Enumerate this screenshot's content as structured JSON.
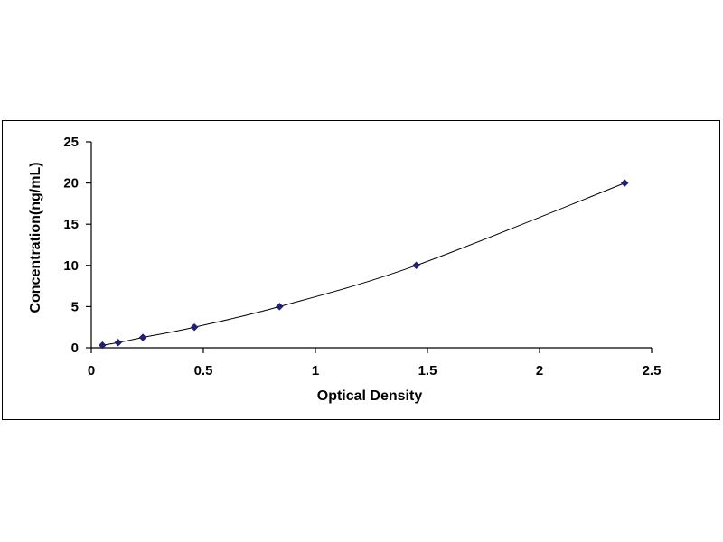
{
  "chart_data": {
    "type": "scatter",
    "title": "",
    "xlabel": "Optical Density",
    "ylabel": "Concentration(ng/mL)",
    "xlim": [
      0,
      2.5
    ],
    "ylim": [
      0,
      25
    ],
    "x_ticks": [
      "0",
      "0.5",
      "1",
      "1.5",
      "2",
      "2.5"
    ],
    "y_ticks": [
      "0",
      "5",
      "10",
      "15",
      "20",
      "25"
    ],
    "grid": false,
    "legend": "none",
    "series": [
      {
        "marker": "diamond",
        "color": "#1f1f7a",
        "line_color": "#000000",
        "fit_line": "smooth",
        "points": [
          {
            "x": 0.05,
            "y": 0.31
          },
          {
            "x": 0.12,
            "y": 0.63
          },
          {
            "x": 0.23,
            "y": 1.25
          },
          {
            "x": 0.46,
            "y": 2.5
          },
          {
            "x": 0.84,
            "y": 5
          },
          {
            "x": 1.45,
            "y": 10
          },
          {
            "x": 2.38,
            "y": 20
          }
        ]
      }
    ]
  }
}
